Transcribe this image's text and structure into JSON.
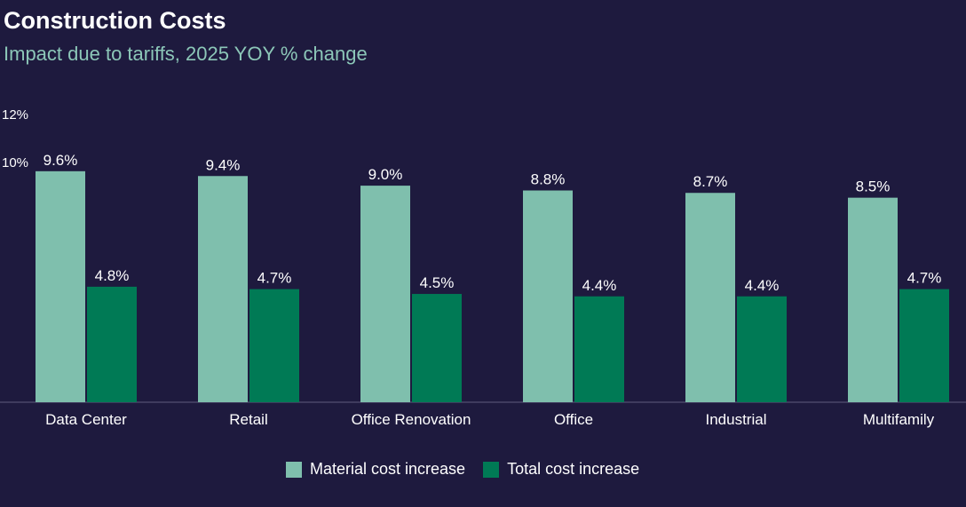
{
  "chart_data": {
    "type": "bar",
    "title": "Construction Costs",
    "subtitle": "Impact due to tariffs, 2025 YOY % change",
    "categories": [
      "Data Center",
      "Retail",
      "Office Renovation",
      "Office",
      "Industrial",
      "Multifamily"
    ],
    "series": [
      {
        "name": "Material cost increase",
        "color": "#7fbfad",
        "values": [
          9.6,
          9.4,
          9.0,
          8.8,
          8.7,
          8.5
        ],
        "labels": [
          "9.6%",
          "9.4%",
          "9.0%",
          "8.8%",
          "8.7%",
          "8.5%"
        ]
      },
      {
        "name": "Total cost increase",
        "color": "#007a55",
        "values": [
          4.8,
          4.7,
          4.5,
          4.4,
          4.4,
          4.7
        ],
        "labels": [
          "4.8%",
          "4.7%",
          "4.5%",
          "4.4%",
          "4.4%",
          "4.7%"
        ]
      }
    ],
    "yticks": [
      "10%",
      "12%"
    ],
    "ytick_values": [
      10,
      12
    ],
    "ylim": [
      0,
      12
    ],
    "grid": false,
    "legend_position": "bottom",
    "background": "#1e1a3e"
  }
}
